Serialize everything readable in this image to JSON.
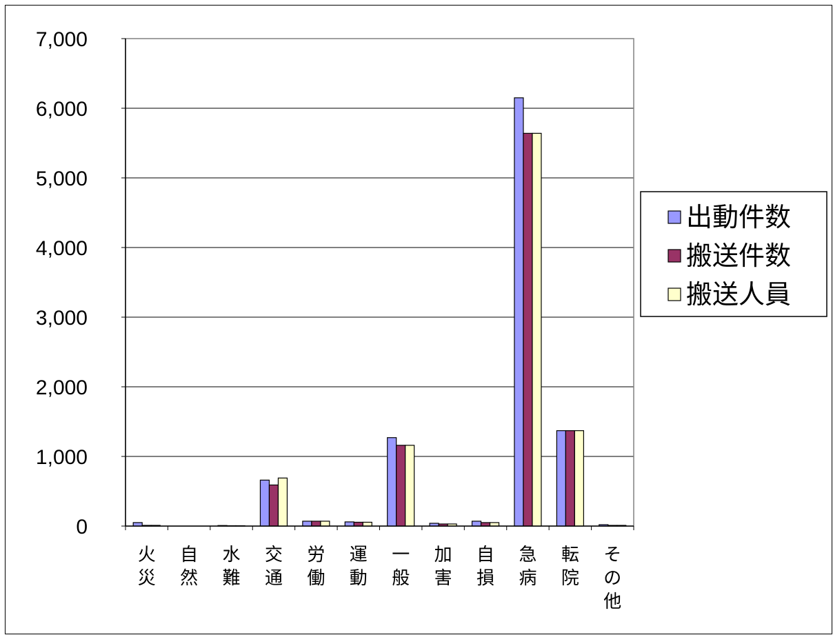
{
  "chart_data": {
    "type": "bar",
    "categories": [
      "火災",
      "自然",
      "水難",
      "交通",
      "労働",
      "運動",
      "一般",
      "加害",
      "自損",
      "急病",
      "転院",
      "その他"
    ],
    "series": [
      {
        "name": "出動件数",
        "values": [
          50,
          0,
          8,
          660,
          70,
          60,
          1270,
          40,
          70,
          6150,
          1370,
          20
        ],
        "color": "#9999ff"
      },
      {
        "name": "搬送件数",
        "values": [
          10,
          0,
          5,
          590,
          70,
          55,
          1160,
          30,
          50,
          5640,
          1370,
          10
        ],
        "color": "#993366"
      },
      {
        "name": "搬送人員",
        "values": [
          10,
          0,
          5,
          690,
          70,
          55,
          1160,
          30,
          50,
          5640,
          1370,
          10
        ],
        "color": "#ffffcc"
      }
    ],
    "yticks": [
      "0",
      "1,000",
      "2,000",
      "3,000",
      "4,000",
      "5,000",
      "6,000",
      "7,000"
    ],
    "ylim": [
      0,
      7000
    ],
    "grid": true,
    "legend_position": "right"
  }
}
